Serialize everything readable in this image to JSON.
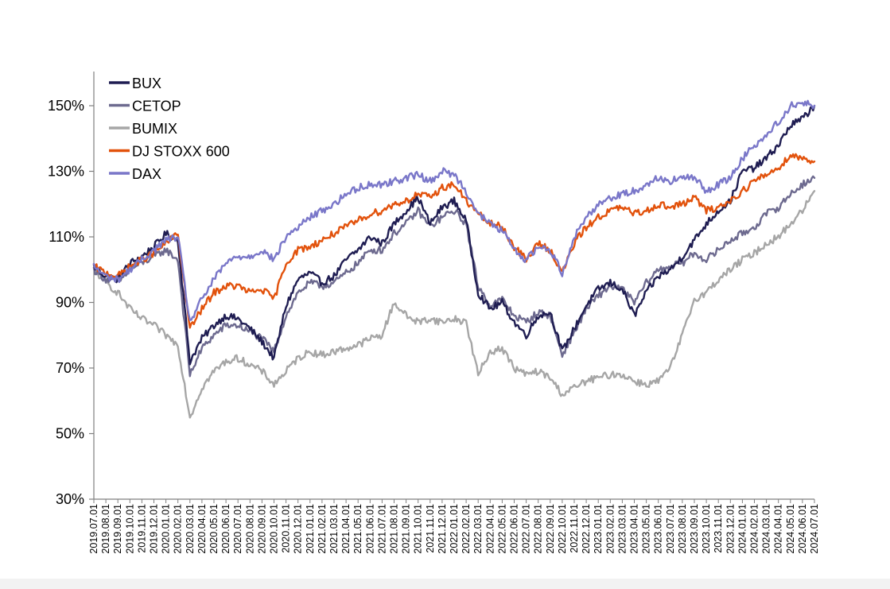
{
  "chart_data": {
    "type": "line",
    "title": "",
    "xlabel": "",
    "ylabel": "",
    "ylim": [
      30,
      160
    ],
    "y_ticks": [
      "150%",
      "130%",
      "110%",
      "90%",
      "70%",
      "50%",
      "30%"
    ],
    "y_tick_values": [
      150,
      130,
      110,
      90,
      70,
      50,
      30
    ],
    "x_ticks": [
      "2019.07.01",
      "2019.08.01",
      "2019.09.01",
      "2019.10.01",
      "2019.11.01",
      "2019.12.01",
      "2020.01.01",
      "2020.02.01",
      "2020.03.01",
      "2020.04.01",
      "2020.05.01",
      "2020.06.01",
      "2020.07.01",
      "2020.08.01",
      "2020.09.01",
      "2020.10.01",
      "2020.11.01",
      "2020.12.01",
      "2021.01.01",
      "2021.02.01",
      "2021.03.01",
      "2021.04.01",
      "2021.05.01",
      "2021.06.01",
      "2021.07.01",
      "2021.08.01",
      "2021.09.01",
      "2021.10.01",
      "2021.11.01",
      "2021.12.01",
      "2022.01.01",
      "2022.02.01",
      "2022.03.01",
      "2022.04.01",
      "2022.05.01",
      "2022.06.01",
      "2022.07.01",
      "2022.08.01",
      "2022.09.01",
      "2022.10.01",
      "2022.11.01",
      "2022.12.01",
      "2023.01.01",
      "2023.02.01",
      "2023.03.01",
      "2023.04.01",
      "2023.05.01",
      "2023.06.01",
      "2023.07.01",
      "2023.08.01",
      "2023.09.01",
      "2023.10.01",
      "2023.11.01",
      "2023.12.01",
      "2024.01.01",
      "2024.02.01",
      "2024.03.01",
      "2024.04.01",
      "2024.05.01",
      "2024.06.01",
      "2024.07.01"
    ],
    "grid": false,
    "legend_position": "top-left",
    "series": [
      {
        "name": "BUX",
        "color": "#1f1d52",
        "values": [
          101,
          98,
          97,
          102,
          104,
          107,
          111,
          109,
          72,
          79,
          83,
          86,
          85,
          82,
          78,
          73,
          89,
          97,
          99,
          96,
          98,
          103,
          106,
          110,
          108,
          114,
          118,
          122,
          114,
          119,
          121,
          115,
          93,
          88,
          90,
          84,
          80,
          86,
          87,
          75,
          82,
          89,
          94,
          96,
          94,
          86,
          93,
          98,
          100,
          104,
          109,
          114,
          118,
          121,
          130,
          131,
          134,
          138,
          144,
          146,
          150
        ]
      },
      {
        "name": "CETOP",
        "color": "#6d6a8f",
        "values": [
          100,
          97,
          96,
          100,
          102,
          104,
          106,
          103,
          68,
          76,
          80,
          83,
          83,
          81,
          79,
          75,
          86,
          93,
          96,
          95,
          96,
          99,
          102,
          106,
          106,
          111,
          114,
          118,
          113,
          116,
          118,
          114,
          95,
          89,
          91,
          86,
          84,
          87,
          86,
          74,
          81,
          88,
          92,
          95,
          94,
          90,
          96,
          100,
          101,
          102,
          105,
          103,
          106,
          109,
          111,
          113,
          117,
          119,
          123,
          126,
          128
        ]
      },
      {
        "name": "BUMIX",
        "color": "#a6a6a6",
        "values": [
          100,
          96,
          93,
          88,
          85,
          83,
          80,
          77,
          55,
          64,
          69,
          72,
          73,
          71,
          69,
          65,
          69,
          73,
          75,
          74,
          75,
          76,
          77,
          79,
          80,
          90,
          86,
          84,
          85,
          84,
          85,
          84,
          68,
          75,
          76,
          70,
          68,
          69,
          67,
          62,
          64,
          66,
          67,
          68,
          68,
          66,
          65,
          66,
          70,
          80,
          91,
          93,
          97,
          100,
          103,
          105,
          108,
          110,
          114,
          118,
          124
        ]
      },
      {
        "name": "DJ STOXX 600",
        "color": "#e2520c",
        "values": [
          101,
          99,
          98,
          101,
          103,
          105,
          108,
          111,
          82,
          88,
          93,
          95,
          95,
          93,
          94,
          91,
          102,
          106,
          107,
          109,
          111,
          113,
          115,
          117,
          118,
          120,
          121,
          123,
          122,
          125,
          126,
          121,
          117,
          114,
          113,
          107,
          103,
          108,
          106,
          99,
          108,
          113,
          116,
          118,
          119,
          117,
          118,
          120,
          119,
          120,
          122,
          118,
          119,
          121,
          124,
          127,
          129,
          131,
          135,
          134,
          133
        ]
      },
      {
        "name": "DAX",
        "color": "#7a77c9",
        "values": [
          101,
          98,
          97,
          100,
          103,
          106,
          109,
          110,
          84,
          91,
          97,
          102,
          104,
          104,
          106,
          103,
          110,
          113,
          116,
          118,
          120,
          123,
          125,
          126,
          126,
          127,
          128,
          129,
          127,
          130,
          129,
          124,
          117,
          114,
          112,
          106,
          103,
          107,
          106,
          99,
          110,
          116,
          120,
          122,
          123,
          124,
          126,
          128,
          127,
          128,
          128,
          124,
          126,
          128,
          134,
          138,
          141,
          145,
          150,
          151,
          150
        ]
      }
    ]
  }
}
